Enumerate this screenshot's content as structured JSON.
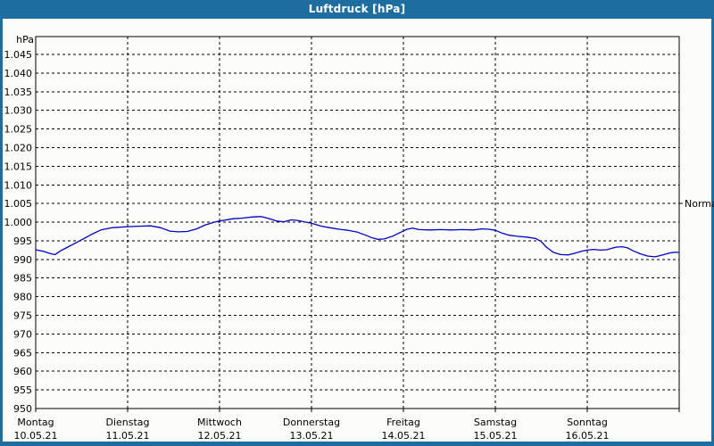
{
  "window": {
    "title": "Luftdruck [hPa]",
    "chrome_color": "#1D6DA1",
    "content_background": "#fcfcfa"
  },
  "chart_data": {
    "type": "line",
    "title": "Luftdruck [hPa]",
    "grid": "dashed-black",
    "legend_position": "none",
    "y_axis": {
      "unit_label": "hPa",
      "min": 950,
      "max": 1045,
      "tick_step": 5,
      "number_format": "german-thousands-dot",
      "tick_labels": [
        "1.045",
        "1.040",
        "1.035",
        "1.030",
        "1.025",
        "1.020",
        "1.015",
        "1.010",
        "1.005",
        "1.000",
        "995",
        "990",
        "985",
        "980",
        "975",
        "970",
        "965",
        "960",
        "955",
        "950"
      ]
    },
    "x_axis": {
      "range_days": 7,
      "days": [
        {
          "name": "Montag",
          "date": "10.05.21"
        },
        {
          "name": "Dienstag",
          "date": "11.05.21"
        },
        {
          "name": "Mittwoch",
          "date": "12.05.21"
        },
        {
          "name": "Donnerstag",
          "date": "13.05.21"
        },
        {
          "name": "Freitag",
          "date": "14.05.21"
        },
        {
          "name": "Samstag",
          "date": "15.05.21"
        },
        {
          "name": "Sonntag",
          "date": "16.05.21"
        }
      ]
    },
    "reference_marker": {
      "label": "Normal",
      "value": 1005
    },
    "series": [
      {
        "name": "Luftdruck",
        "color": "#0000C0",
        "x_unit": "days_since_monday_00h",
        "y_unit": "hPa",
        "points": [
          [
            0.0,
            992.6
          ],
          [
            0.08,
            992.2
          ],
          [
            0.17,
            991.5
          ],
          [
            0.21,
            991.3
          ],
          [
            0.27,
            992.3
          ],
          [
            0.34,
            993.2
          ],
          [
            0.45,
            994.6
          ],
          [
            0.54,
            995.8
          ],
          [
            0.63,
            997.0
          ],
          [
            0.71,
            997.9
          ],
          [
            0.83,
            998.5
          ],
          [
            1.0,
            998.8
          ],
          [
            1.12,
            998.9
          ],
          [
            1.25,
            999.0
          ],
          [
            1.36,
            998.5
          ],
          [
            1.46,
            997.6
          ],
          [
            1.55,
            997.4
          ],
          [
            1.65,
            997.5
          ],
          [
            1.75,
            998.2
          ],
          [
            1.84,
            999.2
          ],
          [
            1.94,
            1000.0
          ],
          [
            2.0,
            1000.3
          ],
          [
            2.14,
            1000.9
          ],
          [
            2.25,
            1001.1
          ],
          [
            2.36,
            1001.4
          ],
          [
            2.45,
            1001.5
          ],
          [
            2.52,
            1001.1
          ],
          [
            2.62,
            1000.3
          ],
          [
            2.7,
            1000.1
          ],
          [
            2.78,
            1000.6
          ],
          [
            2.84,
            1000.5
          ],
          [
            2.92,
            1000.1
          ],
          [
            3.0,
            999.7
          ],
          [
            3.11,
            998.9
          ],
          [
            3.2,
            998.5
          ],
          [
            3.3,
            998.1
          ],
          [
            3.4,
            997.8
          ],
          [
            3.5,
            997.3
          ],
          [
            3.59,
            996.5
          ],
          [
            3.65,
            995.9
          ],
          [
            3.72,
            995.4
          ],
          [
            3.79,
            995.5
          ],
          [
            3.88,
            996.2
          ],
          [
            3.98,
            997.4
          ],
          [
            4.04,
            998.1
          ],
          [
            4.1,
            998.4
          ],
          [
            4.17,
            998.0
          ],
          [
            4.29,
            997.9
          ],
          [
            4.41,
            998.0
          ],
          [
            4.52,
            997.9
          ],
          [
            4.64,
            998.0
          ],
          [
            4.76,
            997.9
          ],
          [
            4.85,
            998.2
          ],
          [
            4.93,
            998.1
          ],
          [
            5.0,
            997.8
          ],
          [
            5.07,
            997.1
          ],
          [
            5.15,
            996.5
          ],
          [
            5.24,
            996.2
          ],
          [
            5.34,
            996.0
          ],
          [
            5.44,
            995.6
          ],
          [
            5.5,
            994.8
          ],
          [
            5.55,
            993.4
          ],
          [
            5.63,
            991.9
          ],
          [
            5.71,
            991.3
          ],
          [
            5.79,
            991.2
          ],
          [
            5.87,
            991.7
          ],
          [
            5.94,
            992.2
          ],
          [
            6.0,
            992.5
          ],
          [
            6.07,
            992.7
          ],
          [
            6.14,
            992.5
          ],
          [
            6.21,
            992.6
          ],
          [
            6.31,
            993.3
          ],
          [
            6.38,
            993.4
          ],
          [
            6.44,
            993.1
          ],
          [
            6.5,
            992.3
          ],
          [
            6.58,
            991.5
          ],
          [
            6.66,
            990.9
          ],
          [
            6.74,
            990.7
          ],
          [
            6.82,
            991.2
          ],
          [
            6.89,
            991.7
          ],
          [
            6.95,
            991.9
          ],
          [
            7.0,
            991.9
          ]
        ]
      }
    ]
  }
}
